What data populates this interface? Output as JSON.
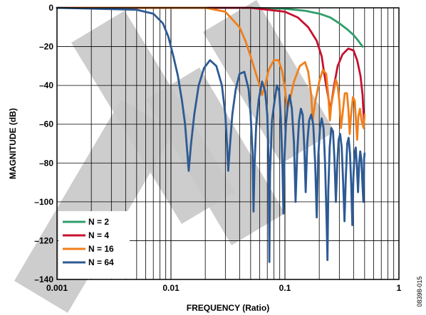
{
  "chart_data": {
    "type": "line",
    "xlabel": "FREQUENCY (Ratio)",
    "ylabel": "MAGNITUDE (dB)",
    "xscale": "log",
    "xlim": [
      0.001,
      1
    ],
    "ylim": [
      -140,
      0
    ],
    "x_ticks": [
      "0.001",
      "0.01",
      "0.1",
      "1"
    ],
    "y_ticks": [
      "0",
      "–20",
      "–40",
      "–60",
      "–80",
      "–100",
      "–120",
      "–140"
    ],
    "grid": true,
    "legend_position": "bottom-left",
    "figure_id": "08398-015",
    "series": [
      {
        "name": "N = 2",
        "color": "#2e9e6b",
        "points": [
          [
            0.001,
            0
          ],
          [
            0.05,
            0
          ],
          [
            0.1,
            -0.5
          ],
          [
            0.15,
            -1.5
          ],
          [
            0.2,
            -3
          ],
          [
            0.25,
            -5
          ],
          [
            0.3,
            -8
          ],
          [
            0.35,
            -11
          ],
          [
            0.4,
            -14
          ],
          [
            0.44,
            -17
          ],
          [
            0.48,
            -20
          ]
        ]
      },
      {
        "name": "N = 4",
        "color": "#c8102e",
        "points": [
          [
            0.001,
            0
          ],
          [
            0.05,
            0
          ],
          [
            0.1,
            -2
          ],
          [
            0.13,
            -5
          ],
          [
            0.16,
            -10
          ],
          [
            0.19,
            -17
          ],
          [
            0.21,
            -25
          ],
          [
            0.22,
            -33
          ],
          [
            0.23,
            -40
          ],
          [
            0.24,
            -46
          ],
          [
            0.25,
            -53
          ],
          [
            0.27,
            -40
          ],
          [
            0.29,
            -30
          ],
          [
            0.32,
            -24
          ],
          [
            0.36,
            -21
          ],
          [
            0.4,
            -22
          ],
          [
            0.43,
            -27
          ],
          [
            0.46,
            -35
          ],
          [
            0.48,
            -45
          ],
          [
            0.49,
            -55
          ],
          [
            0.495,
            -60
          ]
        ]
      },
      {
        "name": "N = 16",
        "color": "#f07f1b",
        "points": [
          [
            0.001,
            0
          ],
          [
            0.02,
            0
          ],
          [
            0.03,
            -2
          ],
          [
            0.04,
            -10
          ],
          [
            0.045,
            -17
          ],
          [
            0.05,
            -25
          ],
          [
            0.055,
            -33
          ],
          [
            0.06,
            -40
          ],
          [
            0.063,
            -45
          ],
          [
            0.067,
            -40
          ],
          [
            0.072,
            -32
          ],
          [
            0.08,
            -27
          ],
          [
            0.088,
            -27
          ],
          [
            0.095,
            -33
          ],
          [
            0.1,
            -42
          ],
          [
            0.105,
            -52
          ],
          [
            0.11,
            -48
          ],
          [
            0.12,
            -38
          ],
          [
            0.135,
            -30
          ],
          [
            0.15,
            -28
          ],
          [
            0.16,
            -33
          ],
          [
            0.17,
            -45
          ],
          [
            0.175,
            -58
          ],
          [
            0.185,
            -48
          ],
          [
            0.2,
            -38
          ],
          [
            0.215,
            -32
          ],
          [
            0.23,
            -34
          ],
          [
            0.24,
            -45
          ],
          [
            0.248,
            -58
          ],
          [
            0.255,
            -50
          ],
          [
            0.27,
            -42
          ],
          [
            0.28,
            -37
          ],
          [
            0.29,
            -40
          ],
          [
            0.3,
            -48
          ],
          [
            0.31,
            -62
          ],
          [
            0.32,
            -55
          ],
          [
            0.335,
            -44
          ],
          [
            0.35,
            -44
          ],
          [
            0.36,
            -52
          ],
          [
            0.37,
            -65
          ],
          [
            0.38,
            -55
          ],
          [
            0.395,
            -46
          ],
          [
            0.41,
            -48
          ],
          [
            0.42,
            -58
          ],
          [
            0.43,
            -68
          ],
          [
            0.44,
            -56
          ],
          [
            0.455,
            -52
          ],
          [
            0.47,
            -58
          ],
          [
            0.49,
            -62
          ],
          [
            0.5,
            -55
          ]
        ]
      },
      {
        "name": "N = 64",
        "color": "#2d5a94",
        "points": [
          [
            0.001,
            0
          ],
          [
            0.005,
            -1
          ],
          [
            0.007,
            -3
          ],
          [
            0.0085,
            -8
          ],
          [
            0.0095,
            -15
          ],
          [
            0.0105,
            -25
          ],
          [
            0.0115,
            -35
          ],
          [
            0.0125,
            -48
          ],
          [
            0.0133,
            -60
          ],
          [
            0.0138,
            -72
          ],
          [
            0.0143,
            -84
          ],
          [
            0.015,
            -70
          ],
          [
            0.016,
            -55
          ],
          [
            0.0175,
            -40
          ],
          [
            0.0195,
            -31
          ],
          [
            0.022,
            -27
          ],
          [
            0.025,
            -30
          ],
          [
            0.028,
            -40
          ],
          [
            0.03,
            -55
          ],
          [
            0.031,
            -70
          ],
          [
            0.0318,
            -84
          ],
          [
            0.033,
            -70
          ],
          [
            0.0345,
            -55
          ],
          [
            0.037,
            -42
          ],
          [
            0.04,
            -34
          ],
          [
            0.044,
            -33
          ],
          [
            0.048,
            -42
          ],
          [
            0.05,
            -55
          ],
          [
            0.052,
            -75
          ],
          [
            0.053,
            -105
          ],
          [
            0.054,
            -82
          ],
          [
            0.056,
            -60
          ],
          [
            0.059,
            -47
          ],
          [
            0.063,
            -38
          ],
          [
            0.067,
            -43
          ],
          [
            0.07,
            -55
          ],
          [
            0.072,
            -80
          ],
          [
            0.073,
            -131
          ],
          [
            0.074,
            -85
          ],
          [
            0.077,
            -58
          ],
          [
            0.081,
            -48
          ],
          [
            0.085,
            -40
          ],
          [
            0.089,
            -43
          ],
          [
            0.092,
            -57
          ],
          [
            0.095,
            -80
          ],
          [
            0.097,
            -106
          ],
          [
            0.099,
            -78
          ],
          [
            0.102,
            -60
          ],
          [
            0.106,
            -50
          ],
          [
            0.11,
            -45
          ],
          [
            0.115,
            -52
          ],
          [
            0.12,
            -70
          ],
          [
            0.124,
            -100
          ],
          [
            0.128,
            -75
          ],
          [
            0.133,
            -58
          ],
          [
            0.138,
            -52
          ],
          [
            0.143,
            -55
          ],
          [
            0.148,
            -72
          ],
          [
            0.152,
            -95
          ],
          [
            0.157,
            -70
          ],
          [
            0.163,
            -58
          ],
          [
            0.17,
            -55
          ],
          [
            0.177,
            -60
          ],
          [
            0.184,
            -80
          ],
          [
            0.19,
            -108
          ],
          [
            0.196,
            -76
          ],
          [
            0.203,
            -62
          ],
          [
            0.21,
            -57
          ],
          [
            0.218,
            -62
          ],
          [
            0.225,
            -80
          ],
          [
            0.232,
            -110
          ],
          [
            0.236,
            -130
          ],
          [
            0.24,
            -95
          ],
          [
            0.247,
            -72
          ],
          [
            0.255,
            -62
          ],
          [
            0.264,
            -64
          ],
          [
            0.272,
            -78
          ],
          [
            0.28,
            -100
          ],
          [
            0.288,
            -80
          ],
          [
            0.296,
            -68
          ],
          [
            0.305,
            -65
          ],
          [
            0.315,
            -72
          ],
          [
            0.324,
            -90
          ],
          [
            0.333,
            -110
          ],
          [
            0.342,
            -88
          ],
          [
            0.352,
            -70
          ],
          [
            0.362,
            -67
          ],
          [
            0.372,
            -75
          ],
          [
            0.382,
            -92
          ],
          [
            0.39,
            -112
          ],
          [
            0.398,
            -88
          ],
          [
            0.408,
            -75
          ],
          [
            0.418,
            -72
          ],
          [
            0.428,
            -82
          ],
          [
            0.438,
            -95
          ],
          [
            0.448,
            -80
          ],
          [
            0.458,
            -74
          ],
          [
            0.468,
            -78
          ],
          [
            0.478,
            -90
          ],
          [
            0.488,
            -100
          ],
          [
            0.495,
            -78
          ],
          [
            0.5,
            -75
          ]
        ]
      }
    ]
  }
}
